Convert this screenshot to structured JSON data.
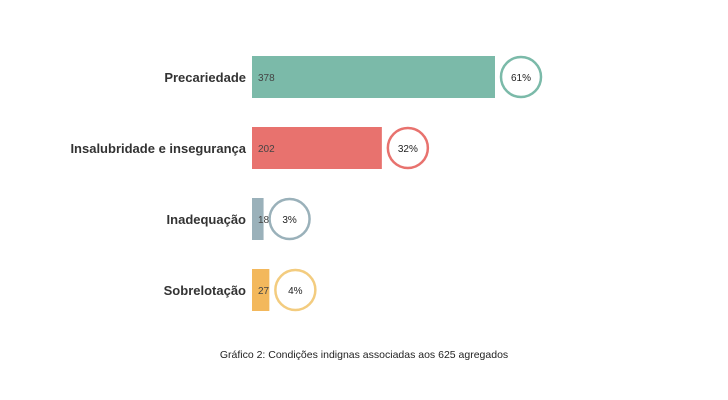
{
  "chart_data": {
    "type": "bar",
    "orientation": "horizontal",
    "categories": [
      "Precariedade",
      "Insalubridade e insegurança",
      "Inadequação",
      "Sobrelotação"
    ],
    "values": [
      378,
      202,
      18,
      27
    ],
    "percentages": [
      "61%",
      "32%",
      "3%",
      "4%"
    ],
    "colors": [
      "#7bbaa9",
      "#e8726e",
      "#9ab1ba",
      "#f3b85c"
    ],
    "ring_colors": [
      "#7bbaa9",
      "#e8726e",
      "#9ab1ba",
      "#f3cc7f"
    ],
    "xlim": [
      0,
      378
    ],
    "grid": false,
    "legend": "none",
    "title": ""
  },
  "caption": "Gráfico 2: Condições indignas associadas aos 625 agregados"
}
